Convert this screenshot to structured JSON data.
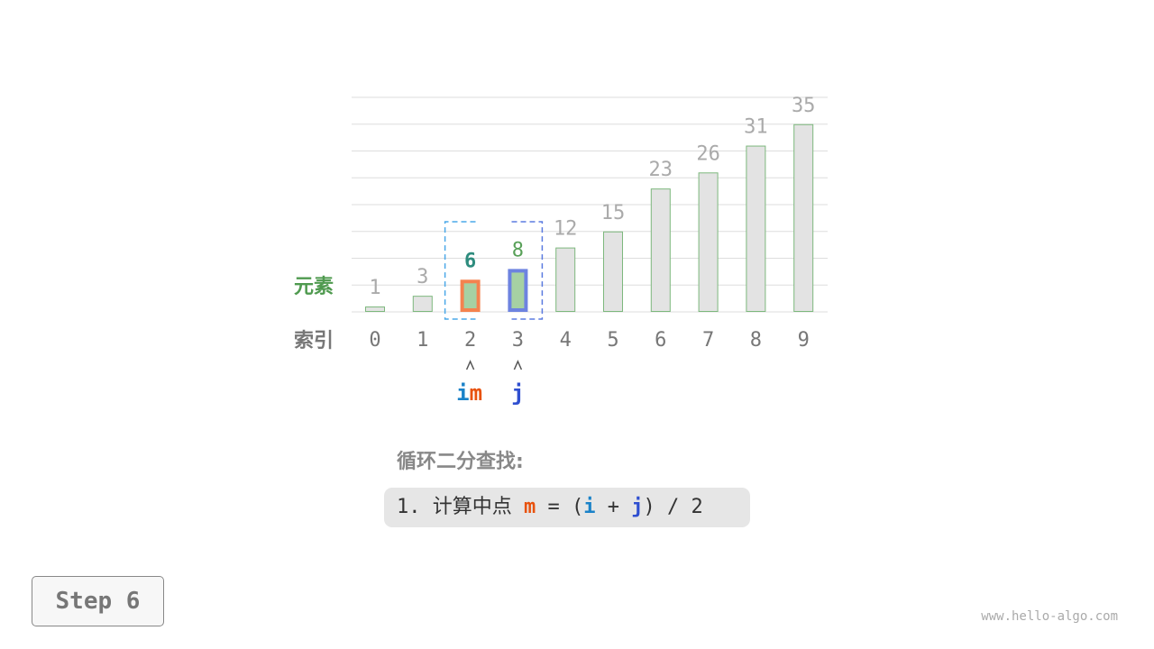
{
  "labels": {
    "elements": "元素",
    "index": "索引"
  },
  "array": {
    "values": [
      1,
      3,
      6,
      8,
      12,
      15,
      23,
      26,
      31,
      35
    ],
    "indices": [
      0,
      1,
      2,
      3,
      4,
      5,
      6,
      7,
      8,
      9
    ]
  },
  "pointers": {
    "i": 2,
    "m": 2,
    "j": 3,
    "i_label": "i",
    "m_label": "m",
    "j_label": "j"
  },
  "search_range": [
    2,
    3
  ],
  "title": "循环二分查找:",
  "code": {
    "prefix": "1. 计算中点 ",
    "m": "m",
    "eq": " = (",
    "i": "i",
    "plus": " + ",
    "j": "j",
    "suffix": ") / 2"
  },
  "step_label": "Step 6",
  "watermark": "www.hello-algo.com",
  "colors": {
    "i": "#1a82c8",
    "m": "#e8520e",
    "j": "#2f4fd0",
    "bar_fill": "#e3e3e3",
    "bar_stroke": "#7db87d",
    "active_fill": "#a6d1a3",
    "m_stroke": "#f4834f",
    "j_stroke": "#6d83e0",
    "value_gray": "#aaa",
    "m_value": "#2e8c7e",
    "j_value": "#58a058",
    "elements_label": "#4f9a4f",
    "index_label": "#777"
  }
}
